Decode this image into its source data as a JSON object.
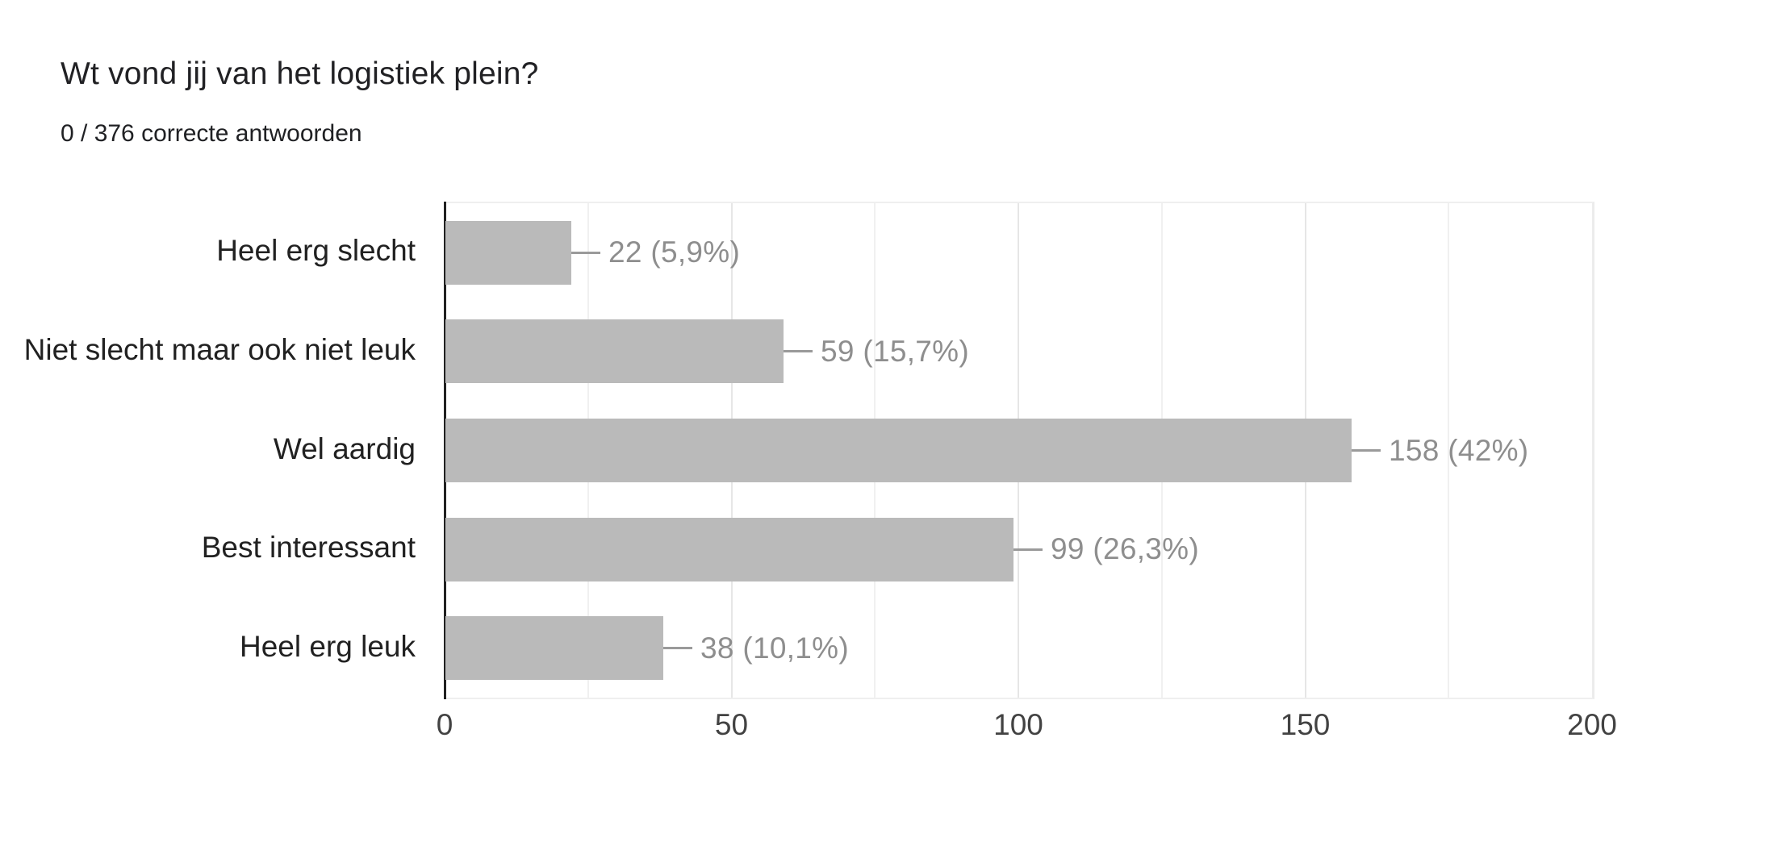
{
  "header": {
    "title": "Wt vond jij van het logistiek plein?",
    "subtitle": "0 / 376 correcte antwoorden"
  },
  "chart_data": {
    "type": "bar",
    "orientation": "horizontal",
    "title": "Wt vond jij van het logistiek plein?",
    "subtitle": "0 / 376 correcte antwoorden",
    "correct_count": 0,
    "total_responses": 376,
    "categories": [
      "Heel erg slecht",
      "Niet slecht maar ook niet leuk",
      "Wel aardig",
      "Best interessant",
      "Heel erg leuk"
    ],
    "values": [
      22,
      59,
      158,
      99,
      38
    ],
    "percentages": [
      "5,9%",
      "15,7%",
      "42%",
      "26,3%",
      "10,1%"
    ],
    "value_labels": [
      "22 (5,9%)",
      "59 (15,7%)",
      "158 (42%)",
      "99 (26,3%)",
      "38 (10,1%)"
    ],
    "xlabel": "",
    "ylabel": "",
    "xlim": [
      0,
      200
    ],
    "x_ticks": [
      "0",
      "50",
      "100",
      "150",
      "200"
    ],
    "x_tick_values": [
      0,
      50,
      100,
      150,
      200
    ],
    "gridline_step": 25,
    "grid": true,
    "legend": false,
    "colors": {
      "bar": "#bababa",
      "value_label": "#8e8e8e",
      "connector": "#9a9a9a",
      "category_label": "#212121",
      "tick_label": "#424242",
      "axis_line": "#212121",
      "gridline_minor": "#f0f0f0",
      "gridline_major": "#e6e6e6",
      "plot_border": "#efefef",
      "title": "#212124",
      "background": "#ffffff"
    }
  }
}
